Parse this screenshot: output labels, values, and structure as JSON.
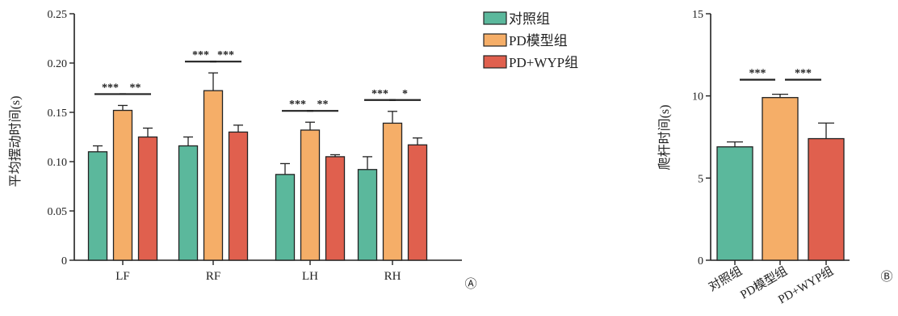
{
  "colors": {
    "control": "#5BB89C",
    "model": "#F5AE68",
    "wyp": "#E0604E",
    "axis": "#222222"
  },
  "chart_data": [
    {
      "type": "bar",
      "panel_label": "Ⓐ",
      "ylabel": "平均摆动时间(s)",
      "ylim": [
        0,
        0.25
      ],
      "yticks": [
        0,
        0.05,
        0.1,
        0.15,
        0.2,
        0.25
      ],
      "ytick_labels": [
        "0",
        "0.05",
        "0.10",
        "0.15",
        "0.20",
        "0.25"
      ],
      "categories": [
        "LF",
        "RF",
        "LH",
        "RH"
      ],
      "legend_position": "top-right",
      "series": [
        {
          "name": "对照组",
          "values": [
            0.11,
            0.116,
            0.087,
            0.092
          ],
          "errors": [
            0.006,
            0.009,
            0.011,
            0.013
          ]
        },
        {
          "name": "PD模型组",
          "values": [
            0.152,
            0.172,
            0.132,
            0.139
          ],
          "errors": [
            0.005,
            0.018,
            0.008,
            0.012
          ]
        },
        {
          "name": "PD+WYP组",
          "values": [
            0.125,
            0.13,
            0.105,
            0.117
          ],
          "errors": [
            0.009,
            0.007,
            0.002,
            0.007
          ]
        }
      ],
      "significance": [
        {
          "category": 0,
          "pair": [
            0,
            1
          ],
          "label": "***"
        },
        {
          "category": 0,
          "pair": [
            1,
            2
          ],
          "label": "**"
        },
        {
          "category": 1,
          "pair": [
            0,
            1
          ],
          "label": "***"
        },
        {
          "category": 1,
          "pair": [
            1,
            2
          ],
          "label": "***"
        },
        {
          "category": 2,
          "pair": [
            0,
            1
          ],
          "label": "***"
        },
        {
          "category": 2,
          "pair": [
            1,
            2
          ],
          "label": "**"
        },
        {
          "category": 3,
          "pair": [
            0,
            1
          ],
          "label": "***"
        },
        {
          "category": 3,
          "pair": [
            1,
            2
          ],
          "label": "*"
        }
      ]
    },
    {
      "type": "bar",
      "panel_label": "Ⓑ",
      "ylabel": "爬杆时间(s)",
      "ylim": [
        0,
        15
      ],
      "yticks": [
        0,
        5,
        10,
        15
      ],
      "ytick_labels": [
        "0",
        "5",
        "10",
        "15"
      ],
      "categories": [
        "对照组",
        "PD模型组",
        "PD+WYP组"
      ],
      "values": [
        6.9,
        9.9,
        7.4
      ],
      "errors": [
        0.3,
        0.2,
        0.95
      ],
      "significance": [
        {
          "pair": [
            0,
            1
          ],
          "label": "***"
        },
        {
          "pair": [
            1,
            2
          ],
          "label": "***"
        }
      ]
    }
  ]
}
